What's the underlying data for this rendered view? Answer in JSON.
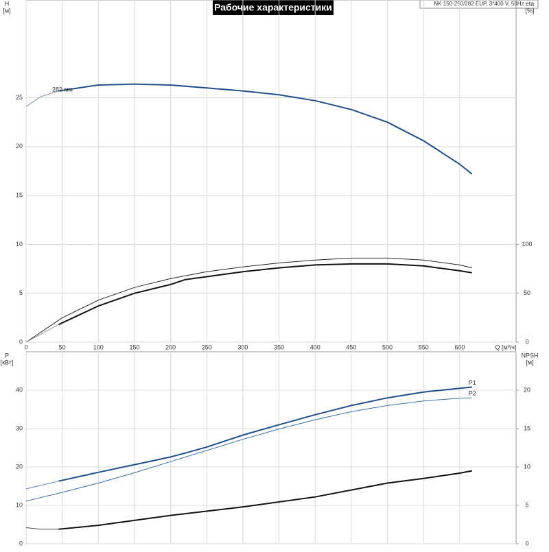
{
  "chart_data": [
    {
      "type": "line",
      "title": "Рабочие характеристики",
      "subtitle": "NK 150-250/282 EUP, 3*400 V, 50Hz",
      "y_label": "H",
      "y_unit": "[м]",
      "y2_label": "eta",
      "y2_unit": "[%]",
      "x_label": "Q [м³/ч]",
      "curve_label": "282 мм",
      "xlim": [
        0,
        678
      ],
      "xticks": [
        0,
        50,
        100,
        150,
        200,
        250,
        300,
        350,
        400,
        450,
        500,
        550,
        600
      ],
      "ylim": [
        0,
        35
      ],
      "yticks": [
        0,
        5,
        10,
        15,
        20,
        25
      ],
      "y2lim": [
        0,
        350
      ],
      "y2ticks": [
        0,
        50,
        100
      ],
      "grid": true,
      "series": [
        {
          "color": "#7f8fa6",
          "width": 1,
          "x": [
            0,
            20,
            45
          ],
          "values": [
            24.1,
            25.1,
            25.7
          ]
        },
        {
          "color": "#1f4e8c",
          "width": 2,
          "x": [
            45,
            100,
            150,
            200,
            250,
            300,
            350,
            400,
            450,
            500,
            550,
            600,
            617
          ],
          "values": [
            25.7,
            26.3,
            26.4,
            26.3,
            26.0,
            25.7,
            25.3,
            24.7,
            23.8,
            22.5,
            20.6,
            18.2,
            17.2
          ]
        },
        {
          "color": "#222222",
          "width": 1,
          "axis": "y2",
          "x": [
            0,
            50,
            100,
            150,
            200,
            250,
            300,
            350,
            400,
            450,
            500,
            550,
            600,
            617
          ],
          "values": [
            0,
            25,
            43,
            56,
            65,
            72,
            77,
            81,
            84,
            86,
            86,
            84,
            79,
            76
          ]
        },
        {
          "color": "#111111",
          "width": 2,
          "axis": "y2",
          "x": [
            45,
            100,
            150,
            200,
            220,
            250,
            300,
            350,
            400,
            450,
            500,
            550,
            600,
            617
          ],
          "values": [
            18,
            37,
            50,
            59,
            64,
            67,
            72,
            76,
            79,
            80,
            80,
            78,
            73,
            71
          ]
        },
        {
          "color": "#999999",
          "width": 1,
          "axis": "y2",
          "x": [
            0,
            45
          ],
          "values": [
            0,
            18
          ]
        }
      ]
    },
    {
      "type": "line",
      "y_label": "P",
      "y_unit": "[кВт]",
      "y2_label": "NPSH",
      "y2_unit": "[м]",
      "xlim": [
        0,
        678
      ],
      "ylim": [
        0,
        50
      ],
      "yticks": [
        0,
        10,
        20,
        30,
        40
      ],
      "y2lim": [
        0,
        25
      ],
      "y2ticks": [
        0,
        5,
        10,
        15,
        20
      ],
      "grid": true,
      "series": [
        {
          "color": "#5a7fb0",
          "width": 1,
          "x": [
            0,
            45
          ],
          "values": [
            14.3,
            16.3
          ]
        },
        {
          "name": "P1",
          "color": "#1f4e8c",
          "width": 2,
          "x": [
            45,
            100,
            150,
            200,
            220,
            250,
            300,
            350,
            400,
            450,
            500,
            550,
            600,
            617
          ],
          "values": [
            16.3,
            18.6,
            20.6,
            22.6,
            23.6,
            25.2,
            28.3,
            31.0,
            33.6,
            36.0,
            38.0,
            39.5,
            40.5,
            40.8
          ]
        },
        {
          "name": "P2",
          "color": "#3a6ea5",
          "width": 1,
          "x": [
            0,
            50,
            100,
            150,
            200,
            250,
            300,
            350,
            400,
            450,
            500,
            550,
            600,
            617
          ],
          "values": [
            11.1,
            13.4,
            15.8,
            18.5,
            21.4,
            24.3,
            27.2,
            29.9,
            32.3,
            34.4,
            36.0,
            37.2,
            37.9,
            38.0
          ]
        },
        {
          "color": "#444444",
          "width": 1,
          "axis": "y2",
          "x": [
            0,
            20,
            45
          ],
          "values": [
            2.1,
            1.9,
            1.9
          ]
        },
        {
          "color": "#111111",
          "width": 2,
          "axis": "y2",
          "x": [
            45,
            100,
            200,
            300,
            400,
            500,
            550,
            600,
            617
          ],
          "values": [
            1.9,
            2.4,
            3.7,
            4.8,
            6.1,
            7.9,
            8.5,
            9.2,
            9.5
          ]
        }
      ]
    }
  ]
}
